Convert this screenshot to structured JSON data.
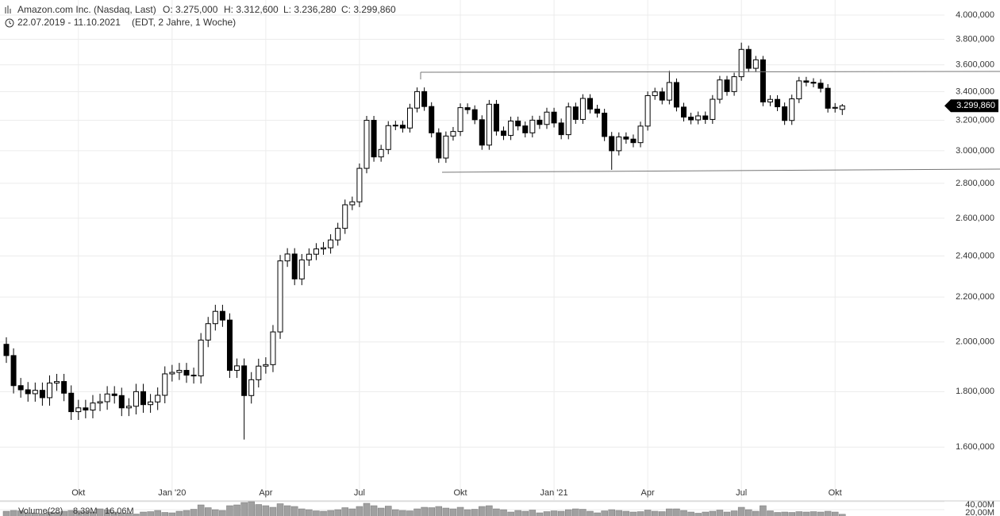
{
  "header": {
    "title": "Amazon.com Inc. (Nasdaq, Last)",
    "open_label": "O: 3.275,000",
    "high_label": "H: 3.312,600",
    "low_label": "L: 3.236,280",
    "close_label": "C: 3.299,860",
    "date_range": "22.07.2019 - 11.10.2021",
    "period": "(EDT, 2 Jahre, 1 Woche)"
  },
  "chart_data": {
    "type": "candlestick",
    "log_scale": true,
    "grid": true,
    "up_color": "#ffffff",
    "down_color": "#000000",
    "last_price_label": "3.299,860",
    "categories": [
      null,
      null,
      null,
      null,
      null,
      null,
      null,
      null,
      null,
      null,
      "Okt",
      null,
      null,
      null,
      null,
      null,
      null,
      null,
      null,
      null,
      null,
      null,
      null,
      "Jan '20",
      null,
      null,
      null,
      null,
      null,
      null,
      null,
      null,
      null,
      null,
      null,
      null,
      "Apr",
      null,
      null,
      null,
      null,
      null,
      null,
      null,
      null,
      null,
      null,
      null,
      null,
      "Jul",
      null,
      null,
      null,
      null,
      null,
      null,
      null,
      null,
      null,
      null,
      null,
      null,
      null,
      "Okt",
      null,
      null,
      null,
      null,
      null,
      null,
      null,
      null,
      null,
      null,
      null,
      null,
      "Jan '21",
      null,
      null,
      null,
      null,
      null,
      null,
      null,
      null,
      null,
      null,
      null,
      null,
      "Apr",
      null,
      null,
      null,
      null,
      null,
      null,
      null,
      null,
      null,
      null,
      null,
      null,
      "Jul",
      null,
      null,
      null,
      null,
      null,
      null,
      null,
      null,
      null,
      null,
      null,
      null,
      "Okt",
      null
    ],
    "open": [
      1990,
      1943,
      1823,
      1807,
      1792,
      1805,
      1777,
      1833,
      1839,
      1794,
      1725,
      1739,
      1731,
      1757,
      1762,
      1791,
      1785,
      1739,
      1745,
      1800,
      1751,
      1761,
      1786,
      1869,
      1875,
      1883,
      1864,
      1861,
      2008,
      2079,
      2134,
      2095,
      1883,
      1901,
      1785,
      1846,
      1900,
      1906,
      2043,
      2375,
      2410,
      2286,
      2380,
      2409,
      2436,
      2442,
      2483,
      2545,
      2675,
      2692,
      2890,
      3200,
      2961,
      3008,
      3164,
      3167,
      3148,
      3284,
      3401,
      3295,
      3116,
      2954,
      3095,
      3125,
      3287,
      3273,
      3204,
      3036,
      3311,
      3128,
      3099,
      3195,
      3162,
      3116,
      3201,
      3172,
      3256,
      3182,
      3104,
      3292,
      3206,
      3352,
      3277,
      3249,
      3092,
      3000,
      3089,
      3075,
      3052,
      3161,
      3372,
      3399,
      3340,
      3467,
      3291,
      3222,
      3203,
      3230,
      3206,
      3346,
      3486,
      3401,
      3510,
      3719,
      3573,
      3638,
      3327,
      3345,
      3293,
      3199,
      3349,
      3479,
      3469,
      3462,
      3425,
      3283,
      3275
    ],
    "high": [
      2020,
      1973,
      1853,
      1837,
      1835,
      1835,
      1863,
      1869,
      1869,
      1824,
      1769,
      1769,
      1787,
      1792,
      1821,
      1821,
      1815,
      1775,
      1830,
      1830,
      1791,
      1816,
      1899,
      1905,
      1913,
      1913,
      1894,
      2038,
      2109,
      2164,
      2164,
      2125,
      1931,
      1931,
      1876,
      1930,
      1936,
      2073,
      2405,
      2440,
      2440,
      2410,
      2439,
      2466,
      2472,
      2513,
      2575,
      2705,
      2722,
      2920,
      3230,
      3230,
      3038,
      3194,
      3197,
      3197,
      3314,
      3431,
      3431,
      3325,
      3146,
      3125,
      3155,
      3317,
      3317,
      3303,
      3234,
      3341,
      3341,
      3158,
      3225,
      3225,
      3192,
      3231,
      3231,
      3286,
      3286,
      3212,
      3322,
      3322,
      3382,
      3382,
      3307,
      3279,
      3122,
      3119,
      3119,
      3105,
      3191,
      3402,
      3429,
      3429,
      3554,
      3497,
      3321,
      3252,
      3260,
      3260,
      3376,
      3516,
      3516,
      3540,
      3773,
      3749,
      3668,
      3668,
      3375,
      3375,
      3323,
      3379,
      3509,
      3509,
      3499,
      3492,
      3455,
      3319,
      3312.6
    ],
    "low": [
      1913,
      1793,
      1777,
      1762,
      1762,
      1747,
      1747,
      1803,
      1764,
      1695,
      1695,
      1701,
      1701,
      1727,
      1732,
      1755,
      1709,
      1709,
      1715,
      1721,
      1721,
      1731,
      1756,
      1839,
      1845,
      1834,
      1831,
      1831,
      1978,
      2049,
      2065,
      1853,
      1853,
      1626,
      1755,
      1816,
      1870,
      1876,
      2013,
      2345,
      2256,
      2256,
      2350,
      2379,
      2406,
      2412,
      2453,
      2515,
      2645,
      2662,
      2860,
      2931,
      2931,
      2978,
      3134,
      3118,
      3118,
      3254,
      3265,
      3086,
      2924,
      2924,
      3065,
      3095,
      3243,
      3174,
      3006,
      3006,
      3098,
      3069,
      3069,
      3132,
      3086,
      3086,
      3142,
      3142,
      3152,
      3074,
      3074,
      3176,
      3176,
      3247,
      3219,
      3062,
      2881,
      2970,
      3045,
      3022,
      3022,
      3131,
      3342,
      3310,
      3310,
      3261,
      3192,
      3173,
      3173,
      3176,
      3176,
      3316,
      3371,
      3371,
      3480,
      3543,
      3543,
      3297,
      3297,
      3263,
      3169,
      3169,
      3319,
      3439,
      3432,
      3395,
      3253,
      3253,
      3236.28
    ],
    "close": [
      1943,
      1823,
      1807,
      1792,
      1805,
      1777,
      1833,
      1839,
      1794,
      1725,
      1739,
      1731,
      1757,
      1762,
      1791,
      1785,
      1739,
      1745,
      1800,
      1751,
      1761,
      1786,
      1869,
      1875,
      1883,
      1864,
      1861,
      2008,
      2079,
      2134,
      2095,
      1883,
      1901,
      1785,
      1846,
      1900,
      1906,
      2043,
      2375,
      2410,
      2286,
      2380,
      2409,
      2436,
      2442,
      2483,
      2545,
      2675,
      2692,
      2890,
      3200,
      2961,
      3008,
      3164,
      3167,
      3148,
      3284,
      3401,
      3295,
      3116,
      2954,
      3095,
      3125,
      3287,
      3273,
      3204,
      3036,
      3311,
      3128,
      3099,
      3195,
      3162,
      3116,
      3201,
      3172,
      3256,
      3182,
      3104,
      3292,
      3206,
      3352,
      3277,
      3249,
      3092,
      3000,
      3089,
      3075,
      3052,
      3161,
      3372,
      3399,
      3340,
      3467,
      3291,
      3222,
      3203,
      3230,
      3206,
      3346,
      3486,
      3401,
      3510,
      3719,
      3573,
      3638,
      3327,
      3345,
      3293,
      3199,
      3349,
      3479,
      3469,
      3462,
      3425,
      3283,
      3289,
      3299.86
    ],
    "ylim": [
      1430,
      4130
    ],
    "yticks": [
      {
        "value": 1600,
        "label": "1.600,000"
      },
      {
        "value": 1800,
        "label": "1.800,000"
      },
      {
        "value": 2000,
        "label": "2.000,000"
      },
      {
        "value": 2200,
        "label": "2.200,000"
      },
      {
        "value": 2400,
        "label": "2.400,000"
      },
      {
        "value": 2600,
        "label": "2.600,000"
      },
      {
        "value": 2800,
        "label": "2.800,000"
      },
      {
        "value": 3000,
        "label": "3.000,000"
      },
      {
        "value": 3200,
        "label": "3.200,000"
      },
      {
        "value": 3400,
        "label": "3.400,000"
      },
      {
        "value": 3600,
        "label": "3.600,000"
      },
      {
        "value": 3800,
        "label": "3.800,000"
      },
      {
        "value": 4000,
        "label": "4.000,000"
      }
    ],
    "volume": {
      "name": "Volume(28)",
      "last_label": "8,39M",
      "ma_label": "16,06M",
      "color": "#a0a0a0",
      "ma_color": "#f0c020",
      "values": [
        16,
        18,
        17,
        12,
        11,
        10,
        14,
        13,
        16,
        18,
        17,
        15,
        14,
        22,
        20,
        14,
        12,
        11,
        9,
        14,
        15,
        18,
        13,
        12,
        16,
        18,
        21,
        32,
        25,
        20,
        18,
        30,
        32,
        38,
        40,
        33,
        30,
        26,
        35,
        30,
        28,
        22,
        20,
        17,
        16,
        18,
        20,
        25,
        22,
        28,
        36,
        30,
        24,
        29,
        20,
        18,
        17,
        22,
        26,
        25,
        28,
        24,
        22,
        26,
        20,
        21,
        28,
        30,
        22,
        20,
        14,
        18,
        16,
        19,
        12,
        15,
        17,
        16,
        20,
        22,
        21,
        16,
        12,
        17,
        20,
        18,
        16,
        14,
        15,
        19,
        16,
        15,
        22,
        22,
        18,
        14,
        11,
        14,
        16,
        19,
        14,
        17,
        26,
        20,
        16,
        30,
        17,
        13,
        14,
        13,
        15,
        14,
        15,
        14,
        16,
        14,
        8.39
      ],
      "y2lim": [
        0,
        42
      ],
      "y2ticks": [
        {
          "value": 40,
          "label": "40,00M"
        },
        {
          "value": 20,
          "label": "20,00M"
        }
      ]
    }
  }
}
